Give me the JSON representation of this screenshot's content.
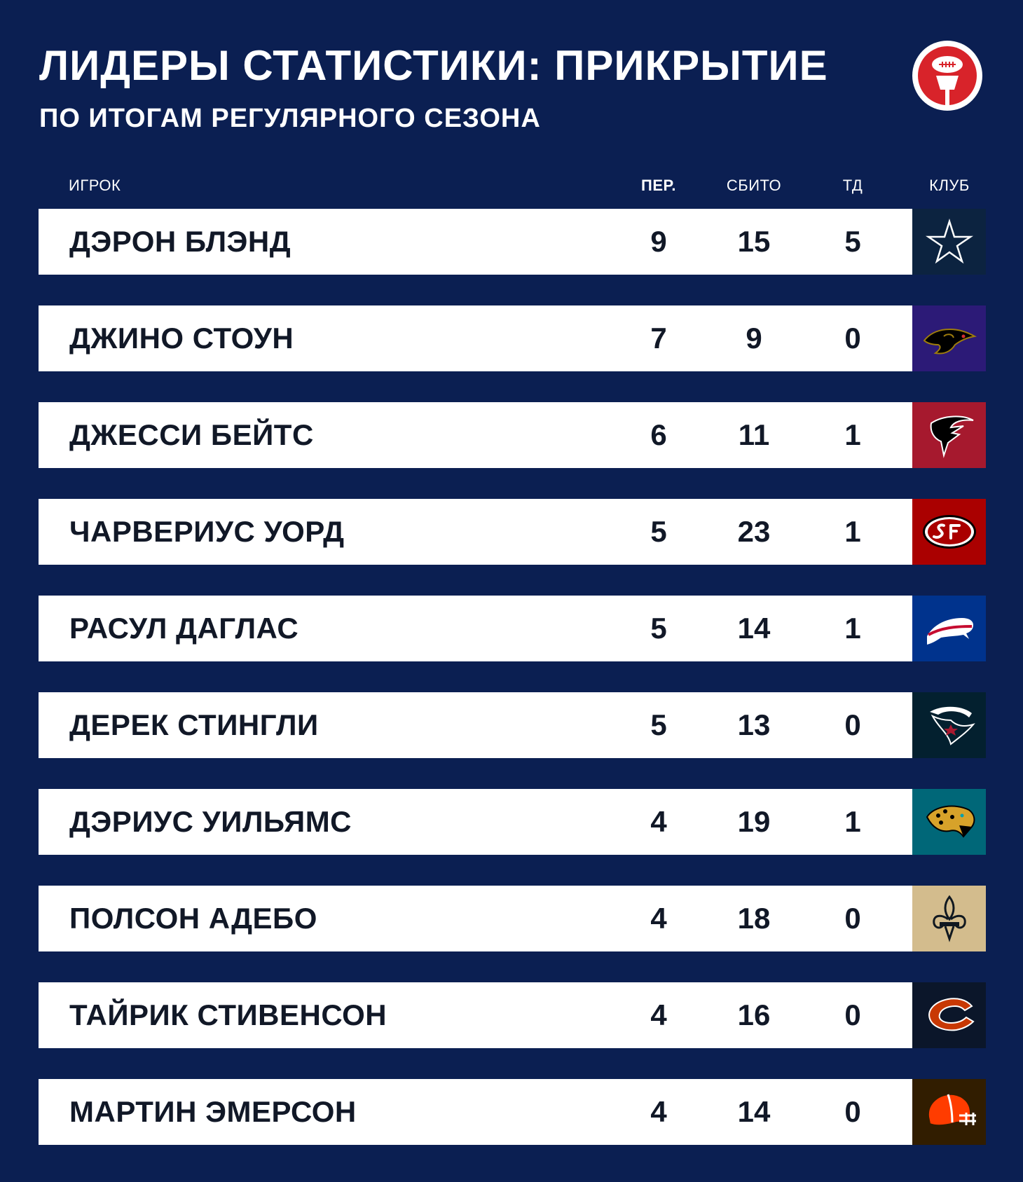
{
  "header": {
    "title": "ЛИДЕРЫ СТАТИСТИКИ: ПРИКРЫТИЕ",
    "subtitle": "ПО ИТОГАМ РЕГУЛЯРНОГО СЕЗОНА",
    "logo_icon": "football-microphone-logo-icon"
  },
  "table": {
    "columns": {
      "player": "ИГРОК",
      "interceptions": "ПЕР.",
      "passes_defended": "СБИТО",
      "touchdowns": "ТД",
      "club": "КЛУБ"
    },
    "rows": [
      {
        "name": "ДЭРОН БЛЭНД",
        "int": "9",
        "pd": "15",
        "td": "5",
        "club_icon": "cowboys-star-icon",
        "club_color": "#0c2340"
      },
      {
        "name": "ДЖИНО СТОУН",
        "int": "7",
        "pd": "9",
        "td": "0",
        "club_icon": "ravens-icon",
        "club_color": "#2c1a77"
      },
      {
        "name": "ДЖЕССИ БЕЙТС",
        "int": "6",
        "pd": "11",
        "td": "1",
        "club_icon": "falcons-icon",
        "club_color": "#a6192e"
      },
      {
        "name": "ЧАРВЕРИУС УОРД",
        "int": "5",
        "pd": "23",
        "td": "1",
        "club_icon": "49ers-sf-icon",
        "club_color": "#aa0000"
      },
      {
        "name": "РАСУЛ ДАГЛАС",
        "int": "5",
        "pd": "14",
        "td": "1",
        "club_icon": "bills-buffalo-icon",
        "club_color": "#00338d"
      },
      {
        "name": "ДЕРЕК СТИНГЛИ",
        "int": "5",
        "pd": "13",
        "td": "0",
        "club_icon": "texans-icon",
        "club_color": "#03202f"
      },
      {
        "name": "ДЭРИУС УИЛЬЯМС",
        "int": "4",
        "pd": "19",
        "td": "1",
        "club_icon": "jaguars-icon",
        "club_color": "#006778"
      },
      {
        "name": "ПОЛСОН АДЕБО",
        "int": "4",
        "pd": "18",
        "td": "0",
        "club_icon": "saints-fleur-de-lis-icon",
        "club_color": "#d3bc8d"
      },
      {
        "name": "ТАЙРИК СТИВЕНСОН",
        "int": "4",
        "pd": "16",
        "td": "0",
        "club_icon": "bears-c-icon",
        "club_color": "#0b162a"
      },
      {
        "name": "МАРТИН ЭМЕРСОН",
        "int": "4",
        "pd": "14",
        "td": "0",
        "club_icon": "browns-helmet-icon",
        "club_color": "#311d00"
      }
    ]
  }
}
